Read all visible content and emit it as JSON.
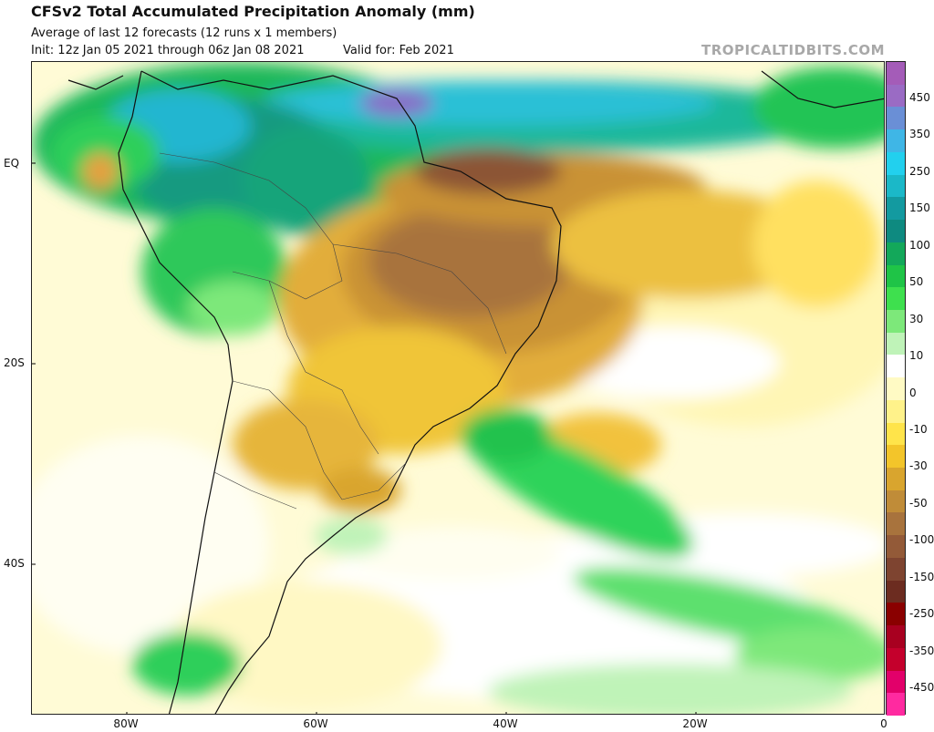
{
  "header": {
    "title": "CFSv2 Total Accumulated Precipitation Anomaly (mm)",
    "subtitle": "Average of last 12 forecasts (12 runs x 1 members)",
    "init": "Init: 12z Jan 05 2021 through 06z Jan 08 2021",
    "valid": "Valid for: Feb 2021",
    "brand": "TROPICALTIDBITS.COM"
  },
  "axes": {
    "lat_labels": [
      "EQ",
      "20S",
      "40S"
    ],
    "lon_labels": [
      "80W",
      "60W",
      "40W",
      "20W",
      "0"
    ]
  },
  "legend": {
    "labels": [
      "450",
      "350",
      "250",
      "150",
      "100",
      "50",
      "30",
      "10",
      "0",
      "-10",
      "-30",
      "-50",
      "-100",
      "-150",
      "-250",
      "-350",
      "-450"
    ],
    "colors": [
      "#a45cb8",
      "#9a6bc4",
      "#6a8fd6",
      "#3fb6e6",
      "#22d0ee",
      "#1bb8c8",
      "#139aa0",
      "#0e8a80",
      "#13a85a",
      "#1fc447",
      "#3ee04e",
      "#7de87a",
      "#bff3b8",
      "#ffffff",
      "#fffac4",
      "#fff28a",
      "#ffe44a",
      "#f3c52a",
      "#d9a52e",
      "#c08c38",
      "#a8733d",
      "#935a38",
      "#7e4430",
      "#6c2c20",
      "#8a0000",
      "#a80020",
      "#c4002c",
      "#e2006a",
      "#ff2aa0"
    ]
  },
  "map": {
    "projection": "cylindrical",
    "lon_range": [
      -90,
      0
    ],
    "lat_range": [
      -56,
      10
    ]
  }
}
